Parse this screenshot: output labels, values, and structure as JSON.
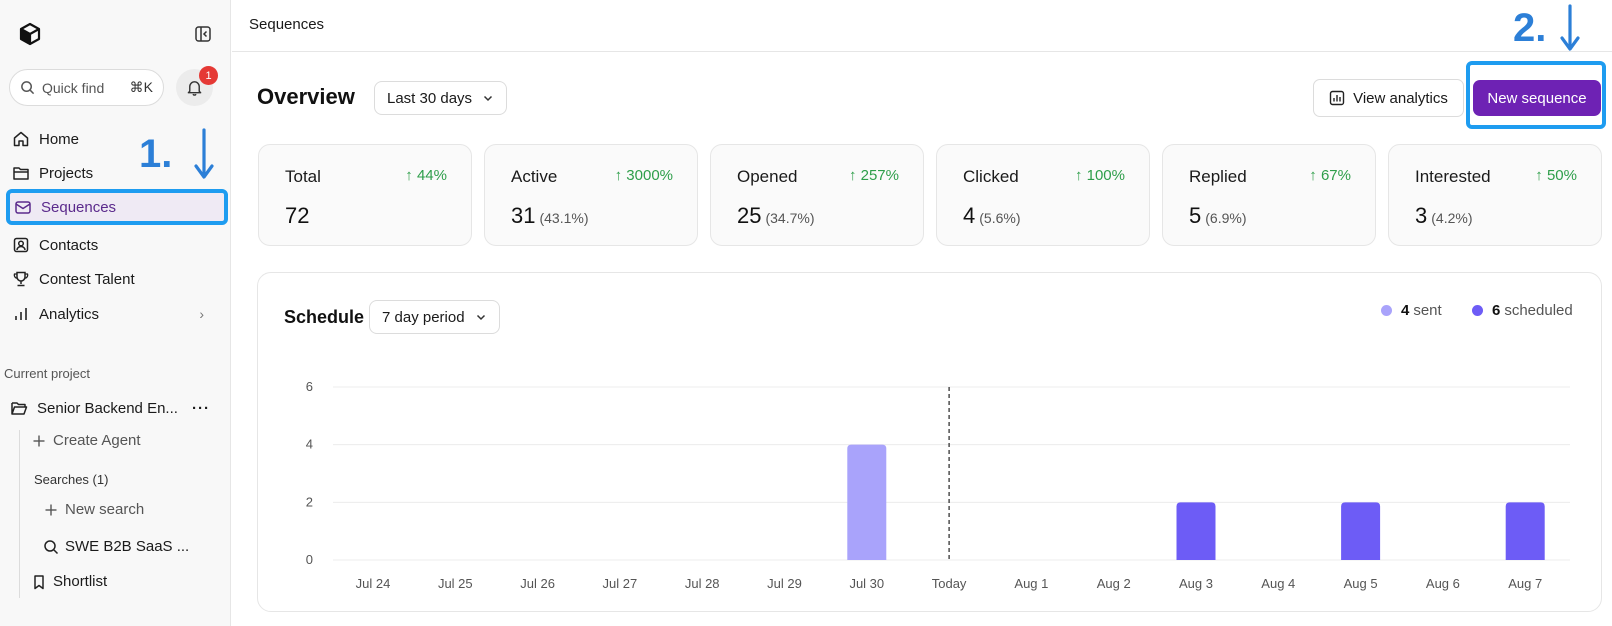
{
  "sidebar": {
    "search": {
      "label": "Quick find",
      "shortcut": "⌘K"
    },
    "notifications": {
      "count": "1"
    },
    "nav": [
      {
        "label": "Home"
      },
      {
        "label": "Projects"
      },
      {
        "label": "Sequences"
      },
      {
        "label": "Contacts"
      },
      {
        "label": "Contest Talent"
      },
      {
        "label": "Analytics"
      }
    ],
    "current_project_label": "Current project",
    "project_name": "Senior Backend En...",
    "create_agent": "Create Agent",
    "searches_label": "Searches (1)",
    "new_search": "New search",
    "search_item": "SWE B2B SaaS ...",
    "shortlist": "Shortlist"
  },
  "annotations": {
    "step1": "1.",
    "step2": "2."
  },
  "header": {
    "title": "Sequences"
  },
  "overview": {
    "title": "Overview",
    "period": "Last 30 days",
    "view_analytics": "View analytics",
    "new_sequence": "New sequence"
  },
  "stats": [
    {
      "label": "Total",
      "delta": "↑ 44%",
      "value": "72",
      "pct": ""
    },
    {
      "label": "Active",
      "delta": "↑ 3000%",
      "value": "31",
      "pct": "(43.1%)"
    },
    {
      "label": "Opened",
      "delta": "↑ 257%",
      "value": "25",
      "pct": "(34.7%)"
    },
    {
      "label": "Clicked",
      "delta": "↑ 100%",
      "value": "4",
      "pct": "(5.6%)"
    },
    {
      "label": "Replied",
      "delta": "↑ 67%",
      "value": "5",
      "pct": "(6.9%)"
    },
    {
      "label": "Interested",
      "delta": "↑ 50%",
      "value": "3",
      "pct": "(4.2%)"
    }
  ],
  "schedule": {
    "title": "Schedule",
    "period": "7 day period",
    "legend": [
      {
        "count": "4",
        "label": "sent",
        "color": "#a9a3fb"
      },
      {
        "count": "6",
        "label": "scheduled",
        "color": "#6d5cf6"
      }
    ]
  },
  "chart_data": {
    "type": "bar",
    "categories": [
      "Jul 24",
      "Jul 25",
      "Jul 26",
      "Jul 27",
      "Jul 28",
      "Jul 29",
      "Jul 30",
      "Today",
      "Aug 1",
      "Aug 2",
      "Aug 3",
      "Aug 4",
      "Aug 5",
      "Aug 6",
      "Aug 7"
    ],
    "series": [
      {
        "name": "sent",
        "color": "#a9a3fb",
        "values": [
          0,
          0,
          0,
          0,
          0,
          0,
          4,
          0,
          0,
          0,
          0,
          0,
          0,
          0,
          0
        ]
      },
      {
        "name": "scheduled",
        "color": "#6d5cf6",
        "values": [
          0,
          0,
          0,
          0,
          0,
          0,
          0,
          0,
          0,
          0,
          2,
          0,
          2,
          0,
          2
        ]
      }
    ],
    "yticks": [
      "0",
      "2",
      "4",
      "6"
    ],
    "ylim": [
      0,
      6
    ],
    "today_marker": "Today",
    "grid": true
  }
}
